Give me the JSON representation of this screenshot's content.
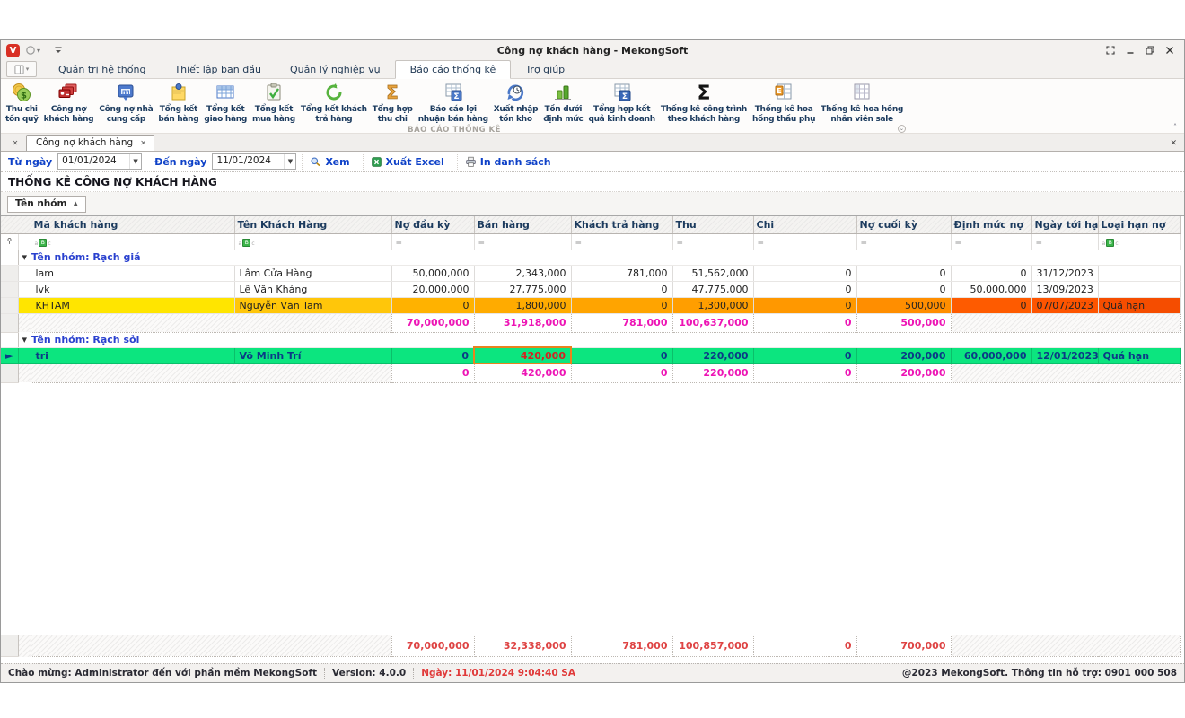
{
  "window": {
    "title": "Công nợ khách hàng - MekongSoft"
  },
  "ribbon": {
    "tabs": [
      "Quản trị hệ thống",
      "Thiết lập ban đầu",
      "Quản lý nghiệp vụ",
      "Báo cáo thống kê",
      "Trợ giúp"
    ],
    "active_tab": "Báo cáo thống kê",
    "group_label": "BÁO CÁO THỐNG KÊ",
    "buttons": [
      {
        "label": "Thu chi\ntồn quỹ",
        "icon": "cash-fund-icon"
      },
      {
        "label": "Công nợ\nkhách hàng",
        "icon": "customer-debt-icon"
      },
      {
        "label": "Công nợ nhà\ncung cấp",
        "icon": "supplier-debt-icon"
      },
      {
        "label": "Tổng kết\nbán hàng",
        "icon": "sales-summary-icon"
      },
      {
        "label": "Tổng kết\ngiao hàng",
        "icon": "delivery-summary-icon"
      },
      {
        "label": "Tổng kết\nmua hàng",
        "icon": "purchase-summary-icon"
      },
      {
        "label": "Tổng kết khách\ntrả hàng",
        "icon": "returns-summary-icon"
      },
      {
        "label": "Tổng hợp\nthu chi",
        "icon": "income-expense-sigma-icon"
      },
      {
        "label": "Báo cáo lợi\nnhuận bán hàng",
        "icon": "profit-report-icon"
      },
      {
        "label": "Xuất nhập\ntồn kho",
        "icon": "inventory-io-icon"
      },
      {
        "label": "Tồn dưới\nđịnh mức",
        "icon": "low-stock-icon"
      },
      {
        "label": "Tổng hợp kết\nquả kinh doanh",
        "icon": "business-result-icon"
      },
      {
        "label": "Thống kê công trình\ntheo khách hàng",
        "icon": "project-sigma-icon"
      },
      {
        "label": "Thống kê hoa\nhồng thầu phụ",
        "icon": "commission-sub-icon"
      },
      {
        "label": "Thống kê hoa hồng\nnhân viên sale",
        "icon": "commission-sale-icon"
      }
    ]
  },
  "doc_tabs": {
    "active": "Công nợ khách hàng"
  },
  "filter_bar": {
    "from_label": "Từ ngày",
    "from_value": "01/01/2024",
    "to_label": "Đến ngày",
    "to_value": "11/01/2024",
    "view_button": "Xem",
    "excel_button": "Xuất Excel",
    "print_button": "In danh sách"
  },
  "report_title": "THỐNG KÊ CÔNG NỢ KHÁCH HÀNG",
  "group_panel": {
    "field": "Tên nhóm"
  },
  "table": {
    "columns": [
      "Mã khách hàng",
      "Tên Khách Hàng",
      "Nợ đầu kỳ",
      "Bán hàng",
      "Khách trả hàng",
      "Thu",
      "Chi",
      "Nợ cuối kỳ",
      "Định mức nợ",
      "Ngày tới hạn",
      "Loại hạn nợ"
    ],
    "groups": [
      {
        "label": "Tên nhóm: Rạch giá",
        "rows": [
          {
            "cells": [
              "lam",
              "Lâm Cửa Hàng",
              "50,000,000",
              "2,343,000",
              "781,000",
              "51,562,000",
              "0",
              "0",
              "0",
              "31/12/2023",
              ""
            ],
            "style": "normal"
          },
          {
            "cells": [
              "lvk",
              "Lê Văn Kháng",
              "20,000,000",
              "27,775,000",
              "0",
              "47,775,000",
              "0",
              "0",
              "50,000,000",
              "13/09/2023",
              ""
            ],
            "style": "normal"
          },
          {
            "cells": [
              "KHTAM",
              "Nguyễn Văn Tam",
              "0",
              "1,800,000",
              "0",
              "1,300,000",
              "0",
              "500,000",
              "0",
              "07/07/2023",
              "Quá hạn"
            ],
            "style": "overdue"
          }
        ],
        "footer": [
          "70,000,000",
          "31,918,000",
          "781,000",
          "100,637,000",
          "0",
          "500,000"
        ]
      },
      {
        "label": "Tên nhóm: Rạch sỏi",
        "rows": [
          {
            "cells": [
              "tri",
              "Võ Minh Trí",
              "0",
              "420,000",
              "0",
              "220,000",
              "0",
              "200,000",
              "60,000,000",
              "12/01/2023",
              "Quá hạn"
            ],
            "style": "selected",
            "focus_cell": 3
          }
        ],
        "footer": [
          "0",
          "420,000",
          "0",
          "220,000",
          "0",
          "200,000"
        ]
      }
    ],
    "grand_total": [
      "70,000,000",
      "32,338,000",
      "781,000",
      "100,857,000",
      "0",
      "700,000"
    ]
  },
  "status_bar": {
    "welcome": "Chào mừng: Administrator đến với phần mềm MekongSoft",
    "version": "Version: 4.0.0",
    "date": "Ngày: 11/01/2024 9:04:40 SA",
    "copyright": "@2023 MekongSoft. Thông tin hỗ trợ: 0901 000 508"
  },
  "icons": {
    "sort-asc-icon": "▲",
    "group-collapse-icon": "▾",
    "dropdown-icon": "▼",
    "row-indicator-icon": "►",
    "close-icon": "✕",
    "equals-filter-icon": "=",
    "ribbon-collapse-icon": "˄",
    "app-logo-letter": "V"
  },
  "colors": {
    "selected_row": "#0ce57f",
    "selected_text": "#0b3a86",
    "overdue_row_start": "#ffe500",
    "overdue_row_end": "#f54d00",
    "focused_cell_bg": "#ffe34c",
    "focused_cell_border": "#e8821e",
    "group_total_text": "#ed14b5",
    "grand_total_text": "#de4343",
    "link_blue": "#0e41c8",
    "group_label_blue": "#2a41cf",
    "header_text": "#1c3b5e"
  }
}
